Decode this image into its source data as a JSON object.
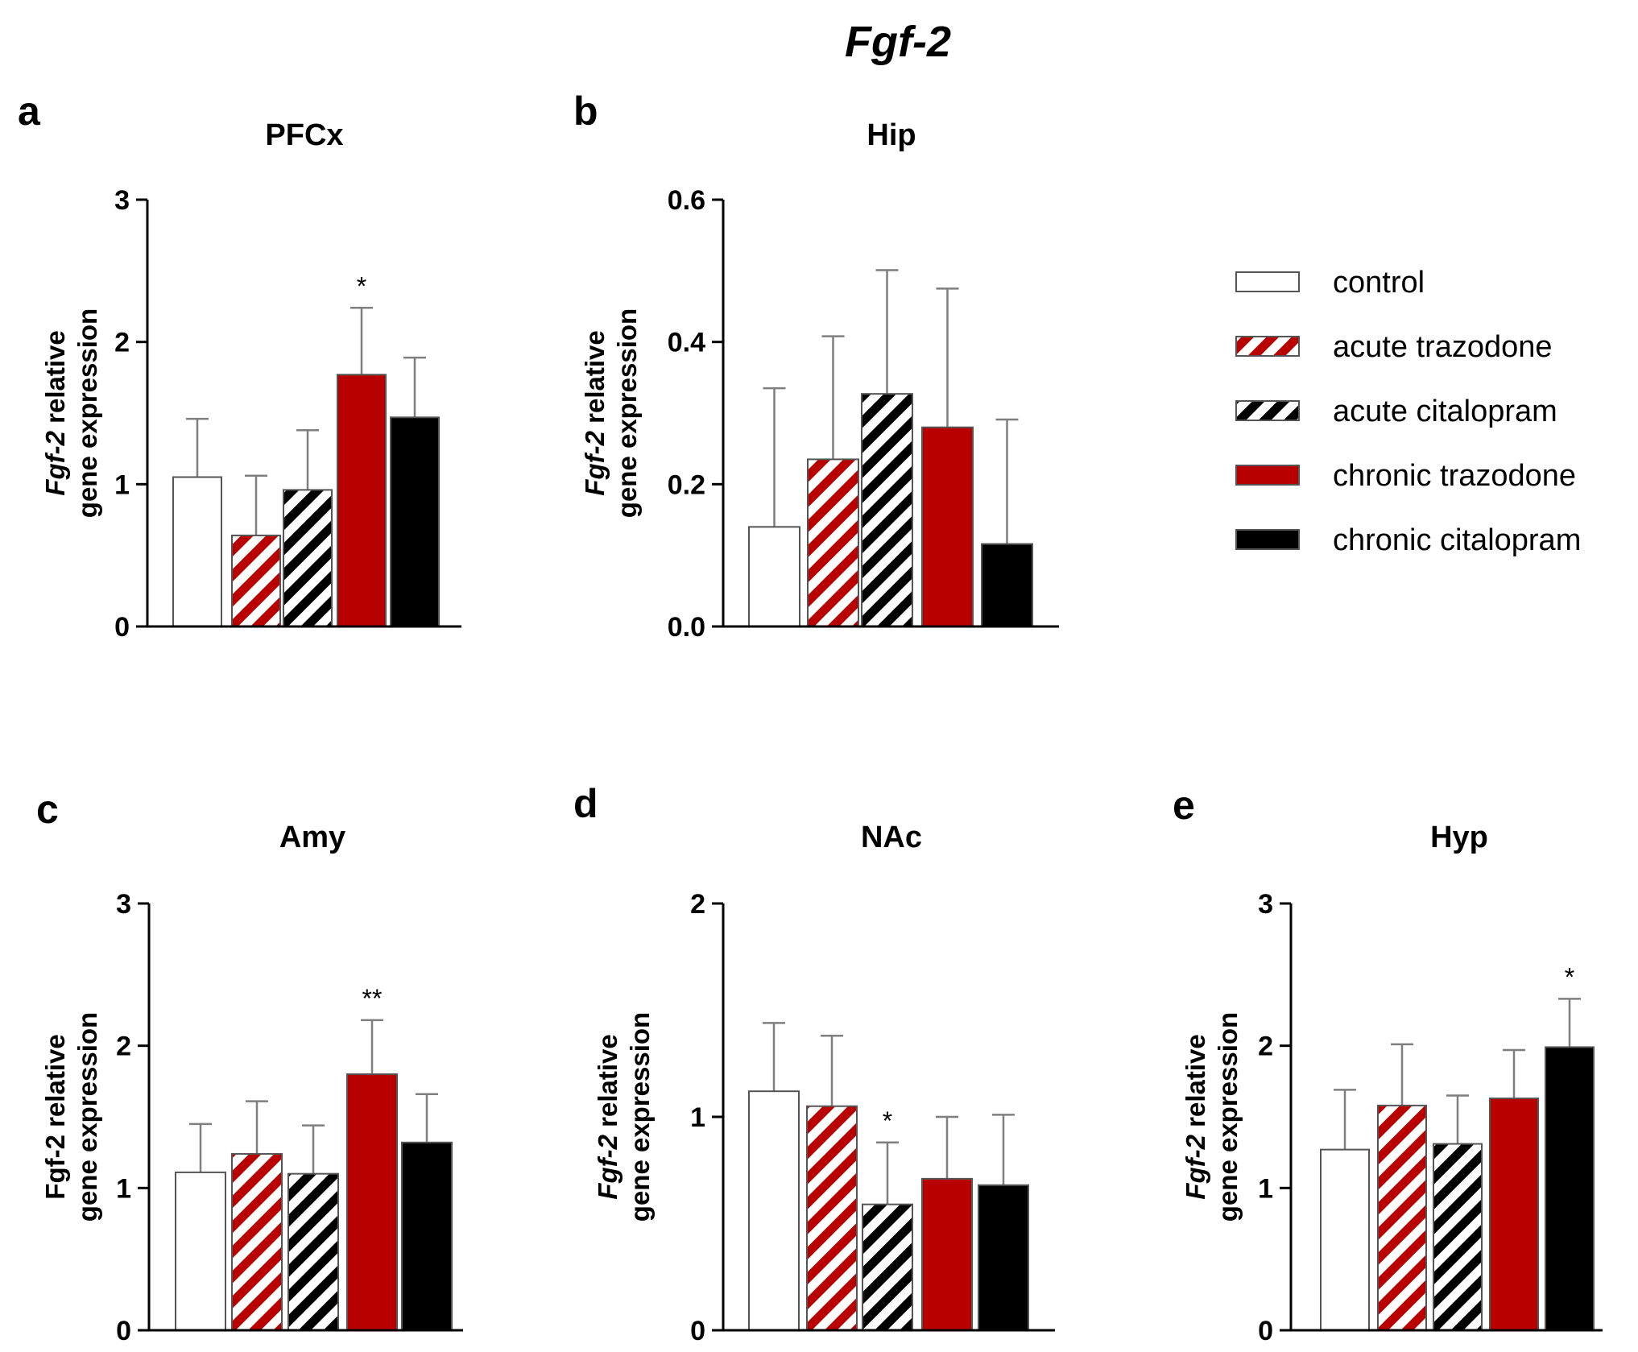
{
  "title": "Fgf-2",
  "colors": {
    "control_fill": "#ffffff",
    "red": "#b80000",
    "black": "#000000",
    "axis": "#000000",
    "error": "#7f7f7f"
  },
  "legend": [
    {
      "key": "control",
      "label": "control",
      "fill": "white"
    },
    {
      "key": "acute_trazodone",
      "label": "acute trazodone",
      "fill": "red-stripe"
    },
    {
      "key": "acute_citalopram",
      "label": "acute citalopram",
      "fill": "black-stripe"
    },
    {
      "key": "chronic_trazodone",
      "label": "chronic trazodone",
      "fill": "red"
    },
    {
      "key": "chronic_citalopram",
      "label": "chronic citalopram",
      "fill": "black"
    }
  ],
  "chart_data": [
    {
      "panel": "a",
      "type": "bar",
      "title": "PFCx",
      "ylabel_italic": "Fgf-2",
      "ylabel_rest": " relative",
      "ylabel_line2": "gene expression",
      "ylim": [
        0,
        3
      ],
      "yticks": [
        "0",
        "1",
        "2",
        "3"
      ],
      "categories": [
        "control",
        "acute trazodone",
        "acute citalopram",
        "chronic trazodone",
        "chronic citalopram"
      ],
      "values": [
        1.05,
        0.64,
        0.96,
        1.77,
        1.47
      ],
      "errors": [
        0.41,
        0.42,
        0.42,
        0.47,
        0.42
      ],
      "annotations": [
        {
          "index": 3,
          "text": "*"
        }
      ]
    },
    {
      "panel": "b",
      "type": "bar",
      "title": "Hip",
      "ylabel_italic": "Fgf-2",
      "ylabel_rest": " relative",
      "ylabel_line2": "gene expression",
      "ylim": [
        0,
        0.6
      ],
      "yticks": [
        "0.0",
        "0.2",
        "0.4",
        "0.6"
      ],
      "categories": [
        "control",
        "acute trazodone",
        "acute citalopram",
        "chronic trazodone",
        "chronic citalopram"
      ],
      "values": [
        0.14,
        0.235,
        0.327,
        0.28,
        0.116
      ],
      "errors": [
        0.195,
        0.173,
        0.174,
        0.195,
        0.175
      ],
      "annotations": []
    },
    {
      "panel": "c",
      "type": "bar",
      "title": "Amy",
      "ylabel_italic": "",
      "ylabel_rest": "Fgf-2 relative",
      "ylabel_line2": "gene expression",
      "ylim": [
        0,
        3
      ],
      "yticks": [
        "0",
        "1",
        "2",
        "3"
      ],
      "categories": [
        "control",
        "acute trazodone",
        "acute citalopram",
        "chronic trazodone",
        "chronic citalopram"
      ],
      "values": [
        1.11,
        1.24,
        1.1,
        1.8,
        1.32
      ],
      "errors": [
        0.34,
        0.37,
        0.34,
        0.38,
        0.34
      ],
      "annotations": [
        {
          "index": 3,
          "text": "**"
        }
      ]
    },
    {
      "panel": "d",
      "type": "bar",
      "title": "NAc",
      "ylabel_italic": "Fgf-2",
      "ylabel_rest": " relative",
      "ylabel_line2": "gene expression",
      "ylim": [
        0,
        2
      ],
      "yticks": [
        "0",
        "1",
        "2"
      ],
      "categories": [
        "control",
        "acute trazodone",
        "acute citalopram",
        "chronic trazodone",
        "chronic citalopram"
      ],
      "values": [
        1.12,
        1.05,
        0.59,
        0.71,
        0.68
      ],
      "errors": [
        0.32,
        0.33,
        0.29,
        0.29,
        0.33
      ],
      "annotations": [
        {
          "index": 2,
          "text": "*"
        }
      ]
    },
    {
      "panel": "e",
      "type": "bar",
      "title": "Hyp",
      "ylabel_italic": "Fgf-2",
      "ylabel_rest": " relative",
      "ylabel_line2": "gene expression",
      "ylim": [
        0,
        3
      ],
      "yticks": [
        "0",
        "1",
        "2",
        "3"
      ],
      "categories": [
        "control",
        "acute trazodone",
        "acute citalopram",
        "chronic trazodone",
        "chronic citalopram"
      ],
      "values": [
        1.27,
        1.58,
        1.31,
        1.63,
        1.99
      ],
      "errors": [
        0.42,
        0.43,
        0.34,
        0.34,
        0.34
      ],
      "annotations": [
        {
          "index": 4,
          "text": "*"
        }
      ]
    }
  ]
}
